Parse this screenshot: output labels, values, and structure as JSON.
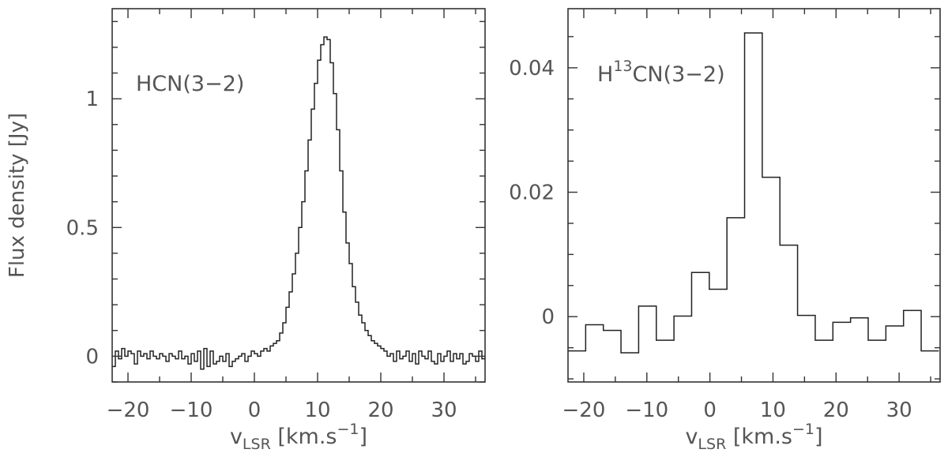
{
  "chart_data": [
    {
      "type": "line",
      "step": true,
      "xlabel": "v",
      "xlabel_sub": "LSR",
      "xlabel_unit_pre": "[km.s",
      "xlabel_unit_sup": "−1",
      "xlabel_unit_post": "]",
      "ylabel": "Flux density [Jy]",
      "annotation": {
        "text": "HCN(3−2)"
      },
      "xlim": [
        -22.5,
        36.5
      ],
      "ylim": [
        -0.1,
        1.35
      ],
      "x_ticks": [
        -20,
        -10,
        0,
        10,
        20,
        30
      ],
      "x_tick_labels": [
        "−20",
        "−10",
        "0",
        "10",
        "20",
        "30"
      ],
      "y_ticks": [
        0,
        0.5,
        1
      ],
      "y_tick_labels": [
        "0",
        "0.5",
        "1"
      ],
      "grid": false,
      "series": [
        {
          "x_start": -22.5,
          "bin_width": 0.5,
          "values": [
            -0.04,
            0.02,
            -0.01,
            0.03,
            0.0,
            0.02,
            0.01,
            -0.03,
            0.02,
            0.0,
            0.01,
            -0.01,
            0.02,
            0.0,
            -0.01,
            0.01,
            0.0,
            -0.02,
            0.01,
            0.0,
            -0.01,
            0.02,
            -0.01,
            0.0,
            -0.03,
            0.01,
            -0.02,
            0.02,
            -0.05,
            0.03,
            -0.04,
            0.02,
            -0.03,
            -0.02,
            0.0,
            -0.02,
            0.01,
            -0.04,
            -0.02,
            -0.01,
            0.0,
            0.01,
            -0.02,
            0.0,
            0.02,
            0.01,
            0.0,
            0.02,
            0.03,
            0.02,
            0.04,
            0.05,
            0.06,
            0.09,
            0.13,
            0.19,
            0.25,
            0.32,
            0.4,
            0.5,
            0.6,
            0.72,
            0.84,
            0.96,
            1.06,
            1.15,
            1.21,
            1.24,
            1.23,
            1.14,
            1.02,
            0.88,
            0.72,
            0.56,
            0.44,
            0.36,
            0.27,
            0.21,
            0.16,
            0.13,
            0.1,
            0.08,
            0.06,
            0.05,
            0.04,
            0.03,
            0.02,
            0.0,
            0.01,
            -0.02,
            0.02,
            -0.01,
            0.0,
            0.02,
            -0.02,
            0.01,
            -0.03,
            0.02,
            0.0,
            -0.01,
            0.02,
            -0.02,
            -0.03,
            0.01,
            -0.02,
            0.0,
            0.02,
            -0.02,
            0.01,
            -0.01,
            0.01,
            -0.03,
            -0.02,
            0.01,
            0.0,
            -0.02,
            0.02,
            -0.01,
            0.0
          ]
        }
      ]
    },
    {
      "type": "line",
      "step": true,
      "xlabel": "v",
      "xlabel_sub": "LSR",
      "xlabel_unit_pre": "[km.s",
      "xlabel_unit_sup": "−1",
      "xlabel_unit_post": "]",
      "ylabel": "",
      "annotation": {
        "text": "H",
        "sup": "13",
        "rest": "CN(3−2)"
      },
      "xlim": [
        -22.5,
        36.5
      ],
      "ylim": [
        -0.0105,
        0.0495
      ],
      "x_ticks": [
        -20,
        -10,
        0,
        10,
        20,
        30
      ],
      "x_tick_labels": [
        "−20",
        "−10",
        "0",
        "10",
        "20",
        "30"
      ],
      "y_ticks": [
        0,
        0.02,
        0.04
      ],
      "y_tick_labels": [
        "0",
        "0.02",
        "0.04"
      ],
      "grid": false,
      "series": [
        {
          "x_start": -22.5,
          "bin_width": 2.8,
          "values": [
            -0.0055,
            -0.0013,
            -0.0022,
            -0.0058,
            0.0017,
            -0.0038,
            0.0001,
            0.0071,
            0.0044,
            0.0159,
            0.0456,
            0.0224,
            0.0115,
            0.0002,
            -0.0038,
            -0.0009,
            -0.0002,
            -0.0038,
            -0.0015,
            0.001,
            -0.0055
          ]
        }
      ]
    }
  ]
}
